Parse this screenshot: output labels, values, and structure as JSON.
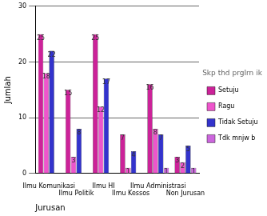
{
  "chart_data": {
    "type": "bar",
    "x_label": "Jurusan",
    "y_label": "Jumlah",
    "legend_title": "Skp thd prgIrn ik",
    "categories": [
      "Ilmu Komunikasi",
      "Ilmu Politik",
      "Ilmu HI",
      "Ilmu Kessos",
      "Ilmu Administrasi",
      "Non Jurusan"
    ],
    "series": [
      {
        "name": "Setuju",
        "color": "#cc2299",
        "values": [
          25,
          15,
          25,
          7,
          16,
          3
        ]
      },
      {
        "name": "Ragu",
        "color": "#ee55cc",
        "values": [
          18,
          3,
          12,
          1,
          8,
          2
        ]
      },
      {
        "name": "Tidak Setuju",
        "color": "#3333cc",
        "values": [
          22,
          8,
          17,
          4,
          7,
          5
        ]
      },
      {
        "name": "Tdk mnjw b",
        "color": "#cc66dd",
        "values": [
          null,
          null,
          null,
          null,
          1,
          1
        ]
      }
    ],
    "ylim": [
      0,
      30
    ],
    "yticks": [
      0,
      10,
      20,
      30
    ],
    "grid": true,
    "legend": "right",
    "data_labels": true
  }
}
